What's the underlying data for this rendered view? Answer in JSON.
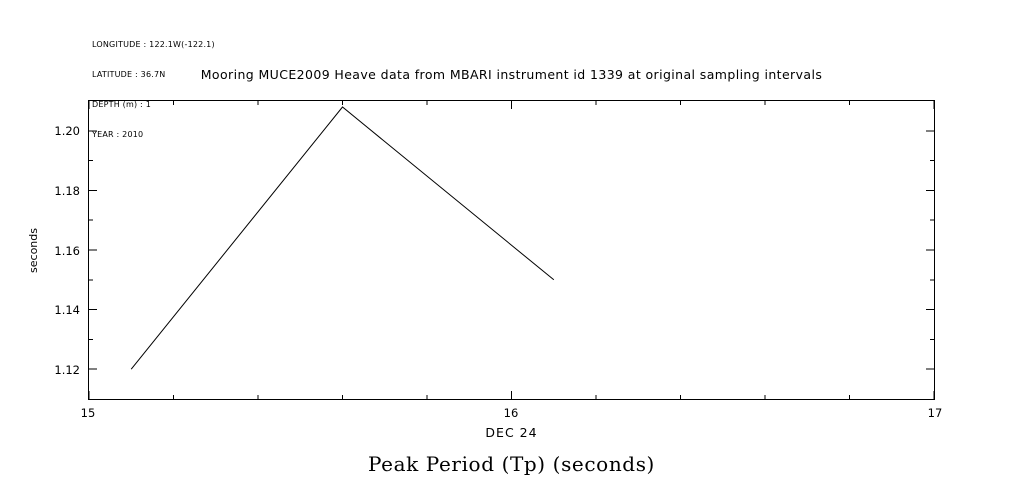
{
  "meta_block": {
    "lines": [
      "LONGITUDE : 122.1W(-122.1)",
      "LATITUDE : 36.7N",
      "DEPTH (m) : 1",
      "YEAR : 2010"
    ]
  },
  "title": "Mooring MUCE2009 Heave data from MBARI instrument id 1339 at original sampling intervals",
  "axes": {
    "y_ticks": [
      "1.20",
      "1.18",
      "1.16",
      "1.14",
      "1.12"
    ],
    "x_ticks": [
      "15",
      "16",
      "17"
    ],
    "y_label": "seconds",
    "x_label": "DEC 24"
  },
  "footer_title": "Peak Period (Tp) (seconds)",
  "chart_data": {
    "type": "line",
    "title": "Mooring MUCE2009 Heave data from MBARI instrument id 1339 at original sampling intervals",
    "xlabel": "DEC 24",
    "ylabel": "seconds",
    "footer": "Peak Period (Tp) (seconds)",
    "x": [
      15.1,
      15.6,
      16.1
    ],
    "y": [
      1.12,
      1.208,
      1.15
    ],
    "xlim": [
      15,
      17
    ],
    "ylim": [
      1.11,
      1.21
    ],
    "x_major_ticks": [
      15,
      16,
      17
    ],
    "x_minor_ticks": [
      15.2,
      15.4,
      15.6,
      15.8,
      16.2,
      16.4,
      16.6,
      16.8
    ],
    "y_major_ticks": [
      1.12,
      1.14,
      1.16,
      1.18,
      1.2
    ],
    "y_minor_ticks": [
      1.13,
      1.15,
      1.17,
      1.19
    ],
    "line_color": "#000000",
    "grid": false,
    "legend": "none"
  }
}
